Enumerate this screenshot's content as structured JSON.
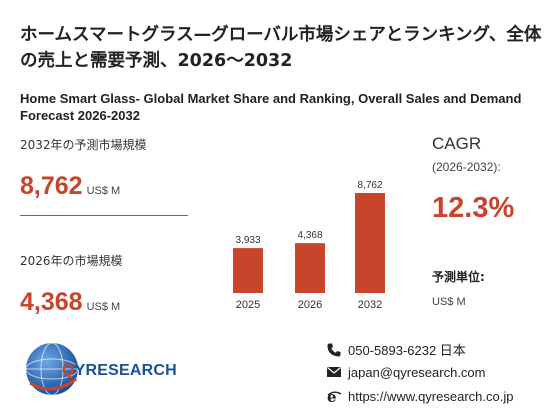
{
  "header": {
    "title_jp": "ホームスマートグラス—グローバル市場シェアとランキング、全体の売上と需要予測、2026～2032",
    "title_en": "Home Smart Glass- Global Market Share and Ranking, Overall Sales and Demand Forecast 2026-2032"
  },
  "stats": {
    "y2032": {
      "label": "2032年の予測市場規模",
      "value": "8,762",
      "unit": "US$ M"
    },
    "y2026": {
      "label": "2026年の市場規模",
      "value": "4,368",
      "unit": "US$ M"
    }
  },
  "cagr": {
    "title": "CAGR",
    "period": "(2026-2032):",
    "value": "12.3%"
  },
  "forecast_unit": {
    "title": "予測単位:",
    "value": "US$ M"
  },
  "chart_data": {
    "type": "bar",
    "categories": [
      "2025",
      "2026",
      "2032"
    ],
    "values": [
      3933,
      4368,
      8762
    ],
    "value_labels": [
      "3,933",
      "4,368",
      "8,762"
    ],
    "bar_color": "#c8442a",
    "ylim": [
      0,
      8762
    ]
  },
  "logo": {
    "q_letter": "Q",
    "rest": "YRESEARCH"
  },
  "contact": {
    "phone": "050-5893-6232 日本",
    "email": "japan@qyresearch.com",
    "website": "https://www.qyresearch.co.jp"
  },
  "colors": {
    "accent": "#c8442a",
    "brand_blue": "#1a4f9c"
  }
}
